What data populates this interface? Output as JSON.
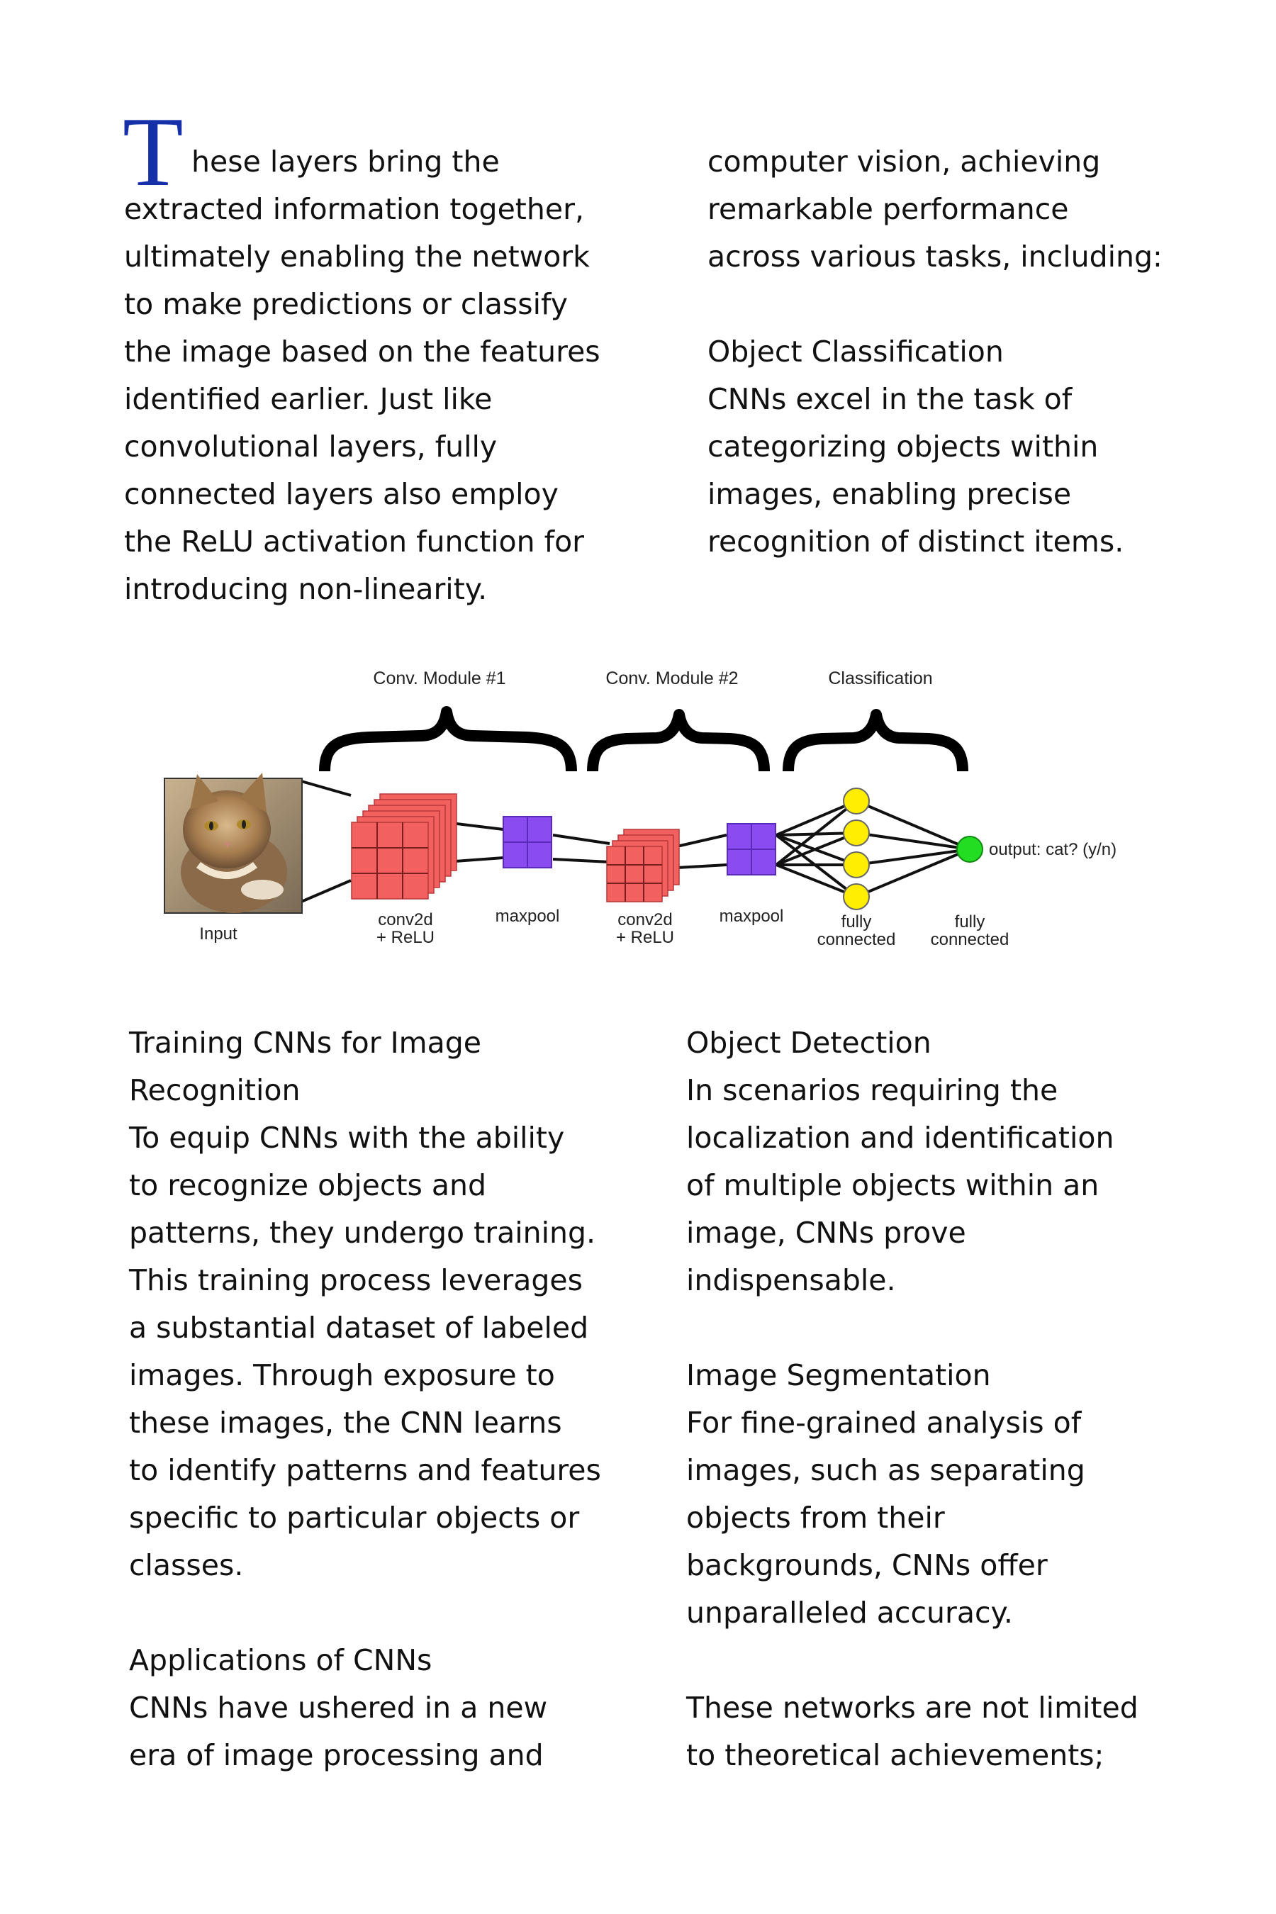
{
  "top_left": {
    "dropcap": "T",
    "first_line_rest": "hese layers bring the",
    "lines": [
      "extracted information together,",
      "ultimately enabling the network",
      "to make predictions or classify",
      "the image based on the features",
      "identified earlier. Just like",
      "convolutional layers, fully",
      "connected layers also employ",
      "the ReLU activation function for",
      "introducing non-linearity."
    ]
  },
  "top_right": {
    "lines": [
      "computer vision, achieving",
      "remarkable performance",
      "across various tasks, including:"
    ],
    "section_title": "Object Classification",
    "section_lines": [
      "CNNs excel in the task of",
      "categorizing objects within",
      "images, enabling precise",
      "recognition of distinct items."
    ]
  },
  "figure": {
    "module1_label": "Conv. Module #1",
    "module2_label": "Conv. Module #2",
    "classification_label": "Classification",
    "input_label": "Input",
    "conv1_label_a": "conv2d",
    "conv1_label_b": "+ ReLU",
    "maxpool1_label": "maxpool",
    "conv2_label_a": "conv2d",
    "conv2_label_b": "+ ReLU",
    "maxpool2_label": "maxpool",
    "fc1_label_a": "fully",
    "fc1_label_b": "connected",
    "fc2_label_a": "fully",
    "fc2_label_b": "connected",
    "output_label": "output: cat? (y/n)",
    "colors": {
      "conv": "#f26060",
      "pool": "#8a4cf0",
      "fc": "#ffee00",
      "output": "#22dd22"
    }
  },
  "bottom_left": {
    "title_lines": [
      "Training CNNs for Image",
      "Recognition"
    ],
    "lines": [
      "To equip CNNs with the ability",
      "to recognize objects and",
      "patterns, they undergo training.",
      "This training process leverages",
      "a substantial dataset of labeled",
      "images. Through exposure to",
      "these images, the CNN learns",
      "to identify patterns and features",
      "specific to particular objects or",
      "classes."
    ],
    "section_title": "Applications of CNNs",
    "section_lines": [
      "CNNs have ushered in a new",
      "era of image processing and"
    ]
  },
  "bottom_right": {
    "section1_title": "Object Detection",
    "section1_lines": [
      "In scenarios requiring the",
      "localization and identification",
      "of multiple objects within an",
      "image, CNNs prove",
      "indispensable."
    ],
    "section2_title": "Image Segmentation",
    "section2_lines": [
      "For fine-grained analysis of",
      "images, such as separating",
      "objects from their",
      "backgrounds, CNNs offer",
      "unparalleled accuracy."
    ],
    "closing_lines": [
      "These networks are not limited",
      "to theoretical achievements;"
    ]
  }
}
